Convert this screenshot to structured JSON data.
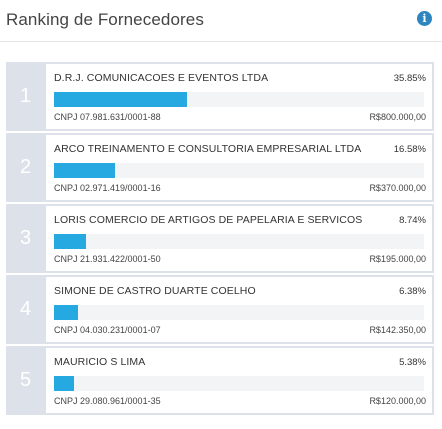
{
  "header": {
    "title": "Ranking de Fornecedores",
    "info_icon": "info-icon"
  },
  "colors": {
    "bar_fill": "#26a9e0",
    "bar_track": "#f3f4f6",
    "row_background": "#dde2ea",
    "info_icon": "#2e86c1"
  },
  "ranking": [
    {
      "rank": "1",
      "name": "D.R.J. COMUNICACOES E EVENTOS LTDA",
      "percent": "35.85%",
      "share": 0.3585,
      "cnpj": "CNPJ 07.981.631/0001-88",
      "value": "R$800.000,00"
    },
    {
      "rank": "2",
      "name": "ARCO TREINAMENTO E CONSULTORIA EMPRESARIAL LTDA",
      "percent": "16.58%",
      "share": 0.1658,
      "cnpj": "CNPJ 02.971.419/0001-16",
      "value": "R$370.000,00"
    },
    {
      "rank": "3",
      "name": "LORIS COMERCIO DE ARTIGOS DE PAPELARIA E SERVICOS GR...",
      "percent": "8.74%",
      "share": 0.0874,
      "cnpj": "CNPJ 21.931.422/0001-50",
      "value": "R$195.000,00"
    },
    {
      "rank": "4",
      "name": "SIMONE DE CASTRO DUARTE COELHO",
      "percent": "6.38%",
      "share": 0.0638,
      "cnpj": "CNPJ 04.030.231/0001-07",
      "value": "R$142.350,00"
    },
    {
      "rank": "5",
      "name": "MAURICIO S LIMA",
      "percent": "5.38%",
      "share": 0.0538,
      "cnpj": "CNPJ 29.080.961/0001-35",
      "value": "R$120.000,00"
    }
  ]
}
